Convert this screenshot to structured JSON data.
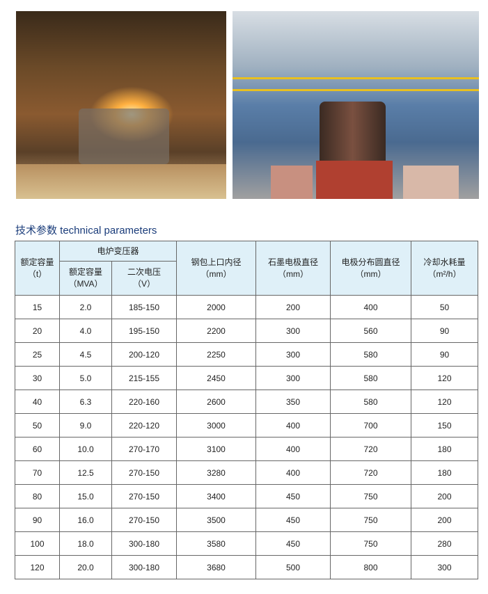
{
  "images": [
    {
      "name": "furnace-interior-photo"
    },
    {
      "name": "furnace-plant-photo"
    }
  ],
  "title": "技术参数  technical parameters",
  "header": {
    "col1": "额定容量",
    "col1_unit": "（t）",
    "group": "电炉变压器",
    "col2": "额定容量",
    "col2_unit": "（MVA）",
    "col3": "二次电压",
    "col3_unit": "（V）",
    "col4": "钢包上口内径",
    "col4_unit": "（mm）",
    "col5": "石墨电极直径",
    "col5_unit": "（mm）",
    "col6": "电极分布圆直径",
    "col6_unit": "（mm）",
    "col7": "冷却水耗量",
    "col7_unit": "（m²/h）"
  },
  "rows": [
    [
      "15",
      "2.0",
      "185-150",
      "2000",
      "200",
      "400",
      "50"
    ],
    [
      "20",
      "4.0",
      "195-150",
      "2200",
      "300",
      "560",
      "90"
    ],
    [
      "25",
      "4.5",
      "200-120",
      "2250",
      "300",
      "580",
      "90"
    ],
    [
      "30",
      "5.0",
      "215-155",
      "2450",
      "300",
      "580",
      "120"
    ],
    [
      "40",
      "6.3",
      "220-160",
      "2600",
      "350",
      "580",
      "120"
    ],
    [
      "50",
      "9.0",
      "220-120",
      "3000",
      "400",
      "700",
      "150"
    ],
    [
      "60",
      "10.0",
      "270-170",
      "3100",
      "400",
      "720",
      "180"
    ],
    [
      "70",
      "12.5",
      "270-150",
      "3280",
      "400",
      "720",
      "180"
    ],
    [
      "80",
      "15.0",
      "270-150",
      "3400",
      "450",
      "750",
      "200"
    ],
    [
      "90",
      "16.0",
      "270-150",
      "3500",
      "450",
      "750",
      "200"
    ],
    [
      "100",
      "18.0",
      "300-180",
      "3580",
      "450",
      "750",
      "280"
    ],
    [
      "120",
      "20.0",
      "300-180",
      "3680",
      "500",
      "800",
      "300"
    ]
  ],
  "colors": {
    "title": "#1a3c7a",
    "header_bg": "#dff0f8"
  }
}
